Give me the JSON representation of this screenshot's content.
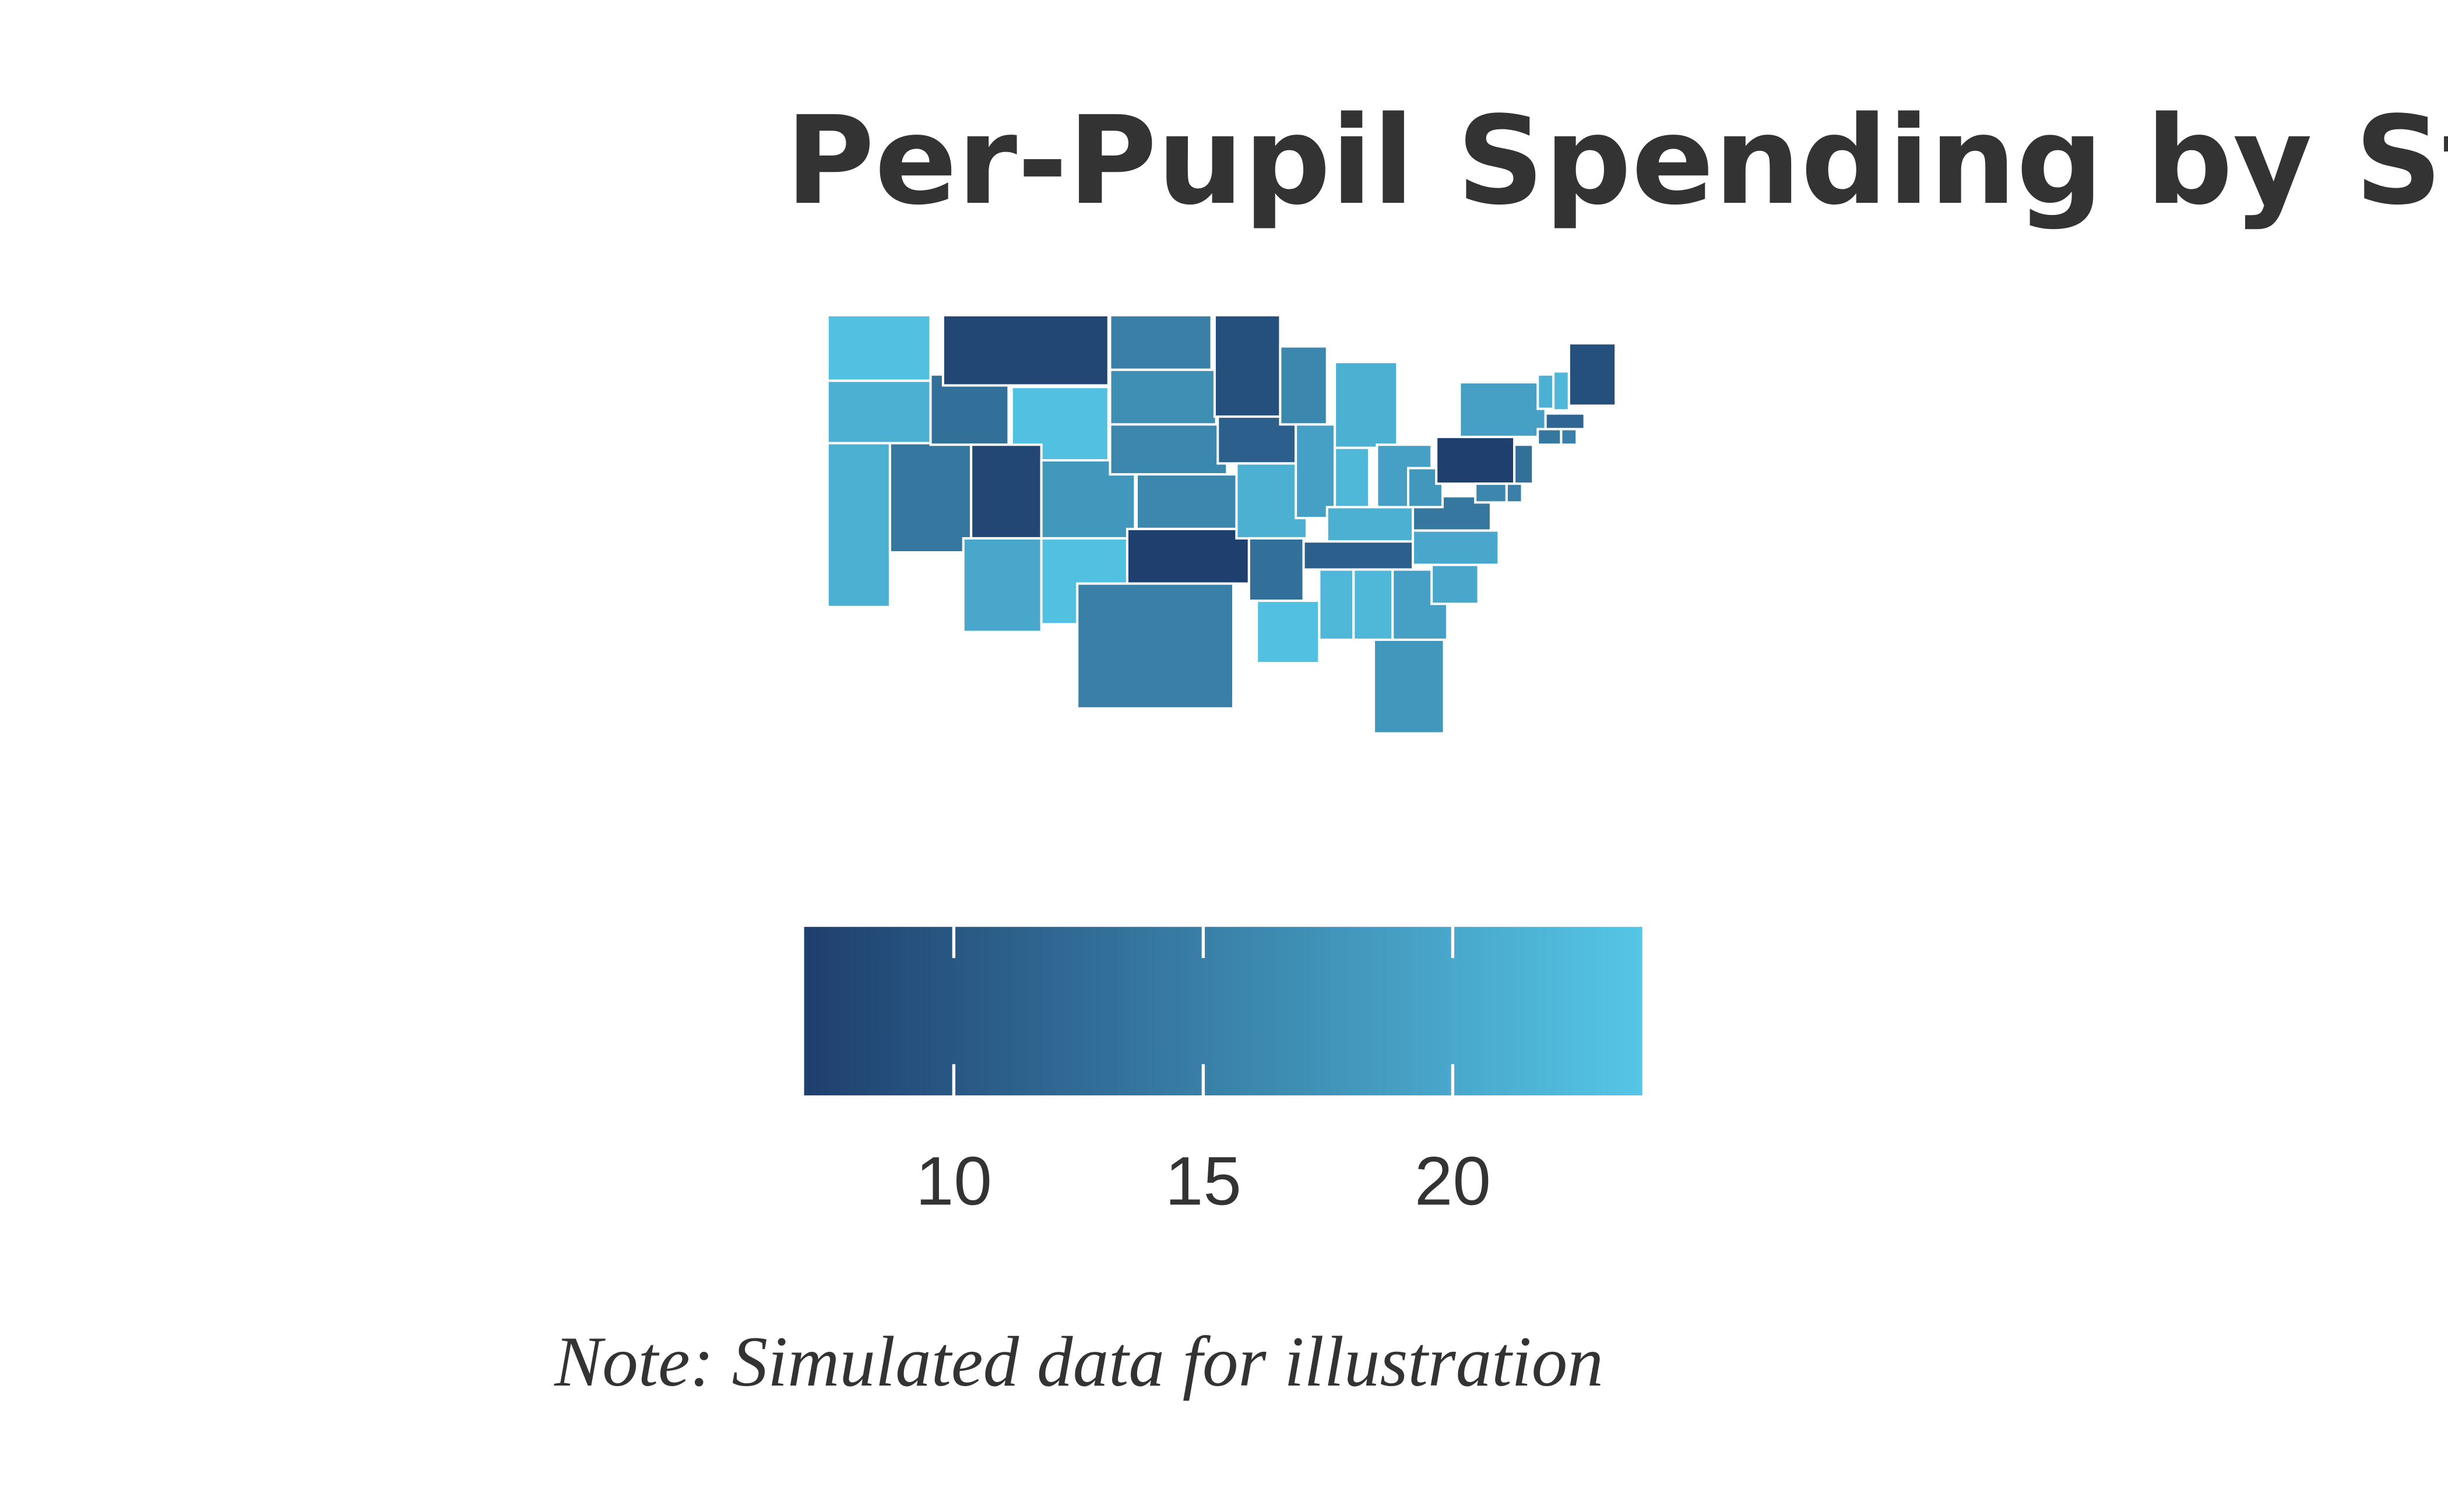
{
  "chart_data": {
    "type": "choropleth",
    "title": "Per-Pupil Spending by State",
    "note": "Note: Simulated data for illustration",
    "values": [
      23,
      21,
      21,
      14,
      13,
      8,
      23,
      8,
      18,
      20,
      23,
      15,
      17,
      16,
      16,
      7,
      15,
      9,
      11,
      21,
      13,
      23,
      16,
      19,
      22,
      21,
      22,
      21,
      11,
      22,
      19,
      19,
      18,
      20,
      20,
      14,
      18,
      7,
      19,
      21,
      22,
      9,
      12,
      14,
      15,
      13,
      15,
      16
    ],
    "colors": [
      "#1f3f6e",
      "#55c6e6"
    ],
    "colorbar_lim": [
      7,
      23.8
    ],
    "colorbar_ticks": [
      10,
      15,
      20
    ]
  }
}
